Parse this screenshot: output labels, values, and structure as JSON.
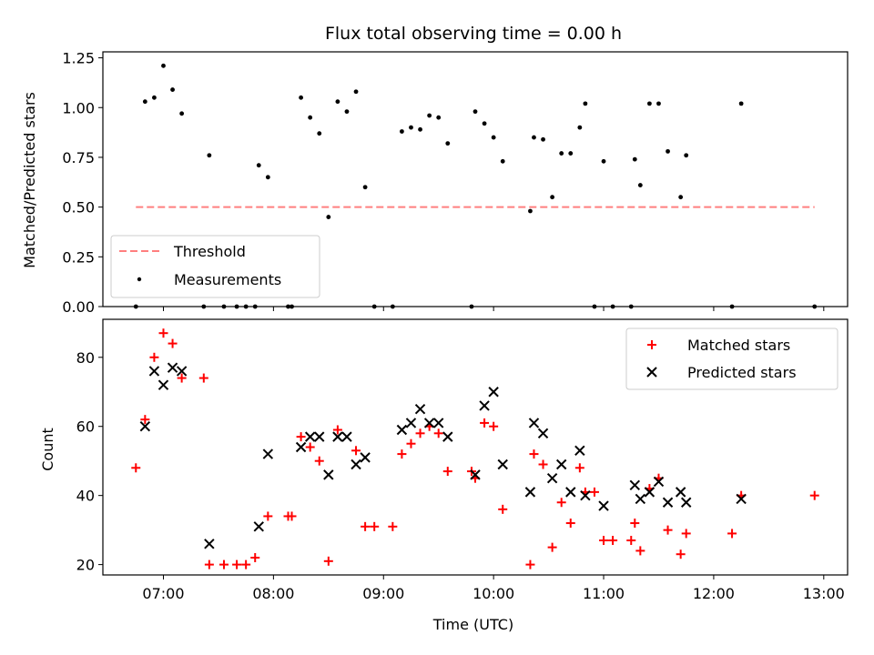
{
  "chart_data": [
    {
      "type": "scatter",
      "title": "Flux total observing time = 0.00 h",
      "xlabel": "",
      "ylabel": "Matched/Predicted stars",
      "ylim": [
        0,
        1.28
      ],
      "yticks": [
        "0.00",
        "0.25",
        "0.50",
        "0.75",
        "1.00",
        "1.25"
      ],
      "ytick_values": [
        0,
        0.25,
        0.5,
        0.75,
        1.0,
        1.25
      ],
      "legend_position": "lower-left",
      "threshold": {
        "name": "Threshold",
        "value": 0.5,
        "x_start": "06:45",
        "x_end": "12:55",
        "color": "#ff7f7f"
      },
      "series": [
        {
          "name": "Measurements",
          "color": "#000000",
          "points": [
            [
              "06:45",
              0.0
            ],
            [
              "06:50",
              1.03
            ],
            [
              "06:55",
              1.05
            ],
            [
              "07:00",
              1.21
            ],
            [
              "07:05",
              1.09
            ],
            [
              "07:10",
              0.97
            ],
            [
              "07:22",
              0.0
            ],
            [
              "07:25",
              0.76
            ],
            [
              "07:33",
              0.0
            ],
            [
              "07:40",
              0.0
            ],
            [
              "07:45",
              0.0
            ],
            [
              "07:50",
              0.0
            ],
            [
              "07:52",
              0.71
            ],
            [
              "07:57",
              0.65
            ],
            [
              "08:08",
              0.0
            ],
            [
              "08:10",
              0.0
            ],
            [
              "08:15",
              1.05
            ],
            [
              "08:20",
              0.95
            ],
            [
              "08:25",
              0.87
            ],
            [
              "08:30",
              0.45
            ],
            [
              "08:35",
              1.03
            ],
            [
              "08:40",
              0.98
            ],
            [
              "08:45",
              1.08
            ],
            [
              "08:50",
              0.6
            ],
            [
              "08:55",
              0.0
            ],
            [
              "09:05",
              0.0
            ],
            [
              "09:10",
              0.88
            ],
            [
              "09:15",
              0.9
            ],
            [
              "09:20",
              0.89
            ],
            [
              "09:25",
              0.96
            ],
            [
              "09:30",
              0.95
            ],
            [
              "09:35",
              0.82
            ],
            [
              "09:48",
              0.0
            ],
            [
              "09:50",
              0.98
            ],
            [
              "09:55",
              0.92
            ],
            [
              "10:00",
              0.85
            ],
            [
              "10:05",
              0.73
            ],
            [
              "10:20",
              0.48
            ],
            [
              "10:22",
              0.85
            ],
            [
              "10:27",
              0.84
            ],
            [
              "10:32",
              0.55
            ],
            [
              "10:37",
              0.77
            ],
            [
              "10:42",
              0.77
            ],
            [
              "10:47",
              0.9
            ],
            [
              "10:50",
              1.02
            ],
            [
              "10:55",
              0.0
            ],
            [
              "11:00",
              0.73
            ],
            [
              "11:05",
              0.0
            ],
            [
              "11:15",
              0.0
            ],
            [
              "11:17",
              0.74
            ],
            [
              "11:20",
              0.61
            ],
            [
              "11:25",
              1.02
            ],
            [
              "11:30",
              1.02
            ],
            [
              "11:35",
              0.78
            ],
            [
              "11:42",
              0.55
            ],
            [
              "11:45",
              0.76
            ],
            [
              "12:10",
              0.0
            ],
            [
              "12:15",
              1.02
            ],
            [
              "12:55",
              0.0
            ]
          ]
        }
      ]
    },
    {
      "type": "scatter",
      "title": "",
      "xlabel": "Time (UTC)",
      "ylabel": "Count",
      "ylim": [
        17,
        91
      ],
      "yticks": [
        "20",
        "40",
        "60",
        "80"
      ],
      "ytick_values": [
        20,
        40,
        60,
        80
      ],
      "xticks": [
        "07:00",
        "08:00",
        "09:00",
        "10:00",
        "11:00",
        "12:00",
        "13:00"
      ],
      "legend_position": "upper-right",
      "series": [
        {
          "name": "Matched stars",
          "marker": "plus",
          "color": "#ff0000",
          "points": [
            [
              "06:45",
              48
            ],
            [
              "06:50",
              62
            ],
            [
              "06:55",
              80
            ],
            [
              "07:00",
              87
            ],
            [
              "07:05",
              84
            ],
            [
              "07:10",
              74
            ],
            [
              "07:22",
              74
            ],
            [
              "07:25",
              20
            ],
            [
              "07:33",
              20
            ],
            [
              "07:40",
              20
            ],
            [
              "07:45",
              20
            ],
            [
              "07:50",
              22
            ],
            [
              "07:57",
              34
            ],
            [
              "08:08",
              34
            ],
            [
              "08:10",
              34
            ],
            [
              "08:15",
              57
            ],
            [
              "08:20",
              54
            ],
            [
              "08:25",
              50
            ],
            [
              "08:30",
              21
            ],
            [
              "08:35",
              59
            ],
            [
              "08:45",
              53
            ],
            [
              "08:50",
              31
            ],
            [
              "08:55",
              31
            ],
            [
              "09:05",
              31
            ],
            [
              "09:10",
              52
            ],
            [
              "09:15",
              55
            ],
            [
              "09:20",
              58
            ],
            [
              "09:25",
              60
            ],
            [
              "09:30",
              58
            ],
            [
              "09:35",
              47
            ],
            [
              "09:48",
              47
            ],
            [
              "09:50",
              45
            ],
            [
              "09:55",
              61
            ],
            [
              "10:00",
              60
            ],
            [
              "10:05",
              36
            ],
            [
              "10:20",
              20
            ],
            [
              "10:22",
              52
            ],
            [
              "10:27",
              49
            ],
            [
              "10:32",
              25
            ],
            [
              "10:37",
              38
            ],
            [
              "10:42",
              32
            ],
            [
              "10:47",
              48
            ],
            [
              "10:50",
              41
            ],
            [
              "10:55",
              41
            ],
            [
              "11:00",
              27
            ],
            [
              "11:05",
              27
            ],
            [
              "11:15",
              27
            ],
            [
              "11:17",
              32
            ],
            [
              "11:20",
              24
            ],
            [
              "11:25",
              42
            ],
            [
              "11:30",
              45
            ],
            [
              "11:35",
              30
            ],
            [
              "11:42",
              23
            ],
            [
              "11:45",
              29
            ],
            [
              "12:10",
              29
            ],
            [
              "12:15",
              40
            ],
            [
              "12:55",
              40
            ]
          ]
        },
        {
          "name": "Predicted stars",
          "marker": "x",
          "color": "#000000",
          "points": [
            [
              "06:50",
              60
            ],
            [
              "06:55",
              76
            ],
            [
              "07:00",
              72
            ],
            [
              "07:05",
              77
            ],
            [
              "07:10",
              76
            ],
            [
              "07:25",
              26
            ],
            [
              "07:52",
              31
            ],
            [
              "07:57",
              52
            ],
            [
              "08:15",
              54
            ],
            [
              "08:20",
              57
            ],
            [
              "08:25",
              57
            ],
            [
              "08:30",
              46
            ],
            [
              "08:35",
              57
            ],
            [
              "08:40",
              57
            ],
            [
              "08:45",
              49
            ],
            [
              "08:50",
              51
            ],
            [
              "09:10",
              59
            ],
            [
              "09:15",
              61
            ],
            [
              "09:20",
              65
            ],
            [
              "09:25",
              61
            ],
            [
              "09:30",
              61
            ],
            [
              "09:35",
              57
            ],
            [
              "09:50",
              46
            ],
            [
              "09:55",
              66
            ],
            [
              "10:00",
              70
            ],
            [
              "10:05",
              49
            ],
            [
              "10:20",
              41
            ],
            [
              "10:22",
              61
            ],
            [
              "10:27",
              58
            ],
            [
              "10:32",
              45
            ],
            [
              "10:37",
              49
            ],
            [
              "10:42",
              41
            ],
            [
              "10:47",
              53
            ],
            [
              "10:50",
              40
            ],
            [
              "11:00",
              37
            ],
            [
              "11:17",
              43
            ],
            [
              "11:20",
              39
            ],
            [
              "11:25",
              41
            ],
            [
              "11:30",
              44
            ],
            [
              "11:35",
              38
            ],
            [
              "11:42",
              41
            ],
            [
              "11:45",
              38
            ],
            [
              "12:15",
              39
            ]
          ]
        }
      ]
    }
  ]
}
